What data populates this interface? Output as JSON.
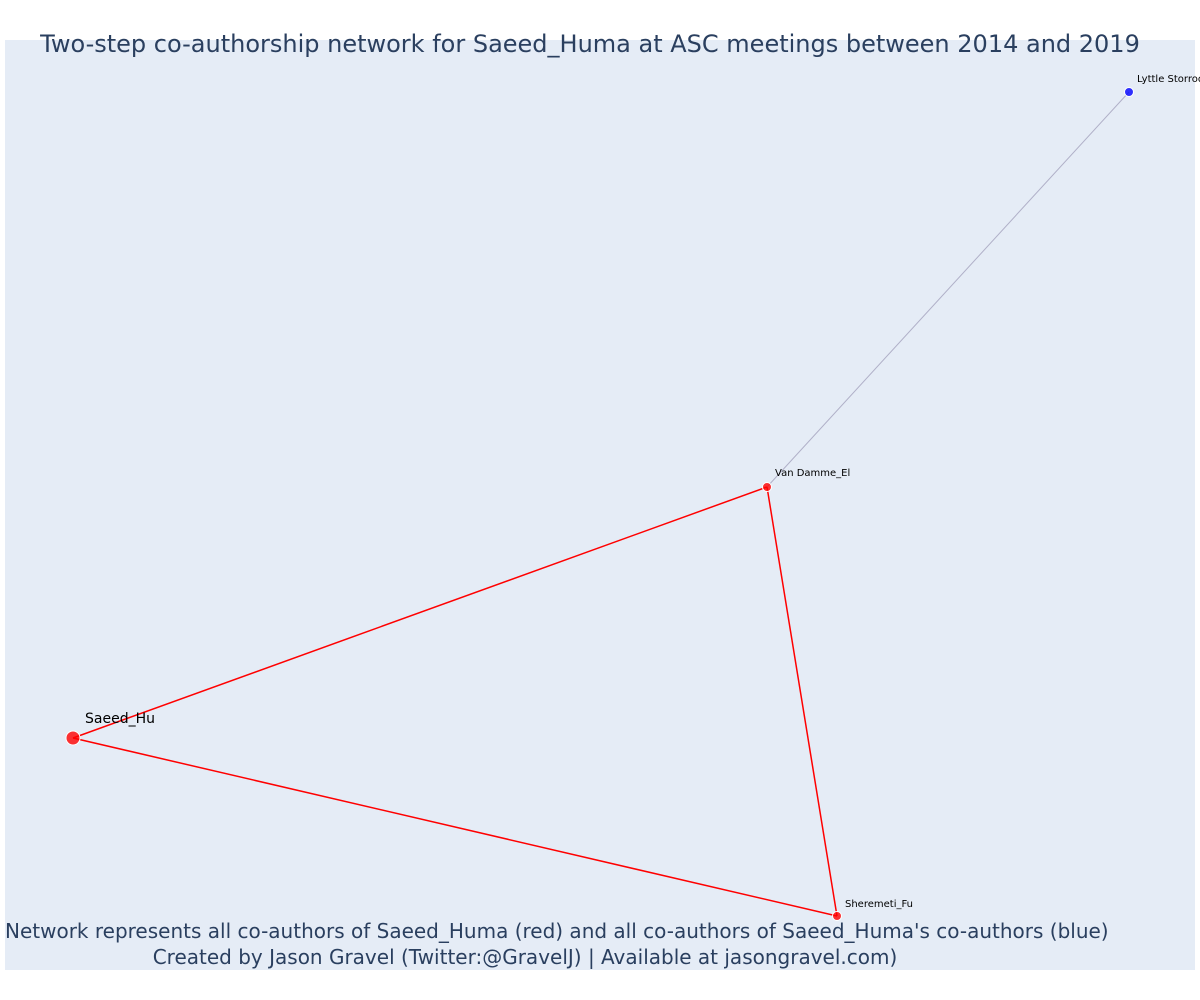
{
  "title": "Two-step co-authorship network for Saeed_Huma at ASC meetings between 2014 and 2019",
  "caption": {
    "line1": "Network represents all co-authors of Saeed_Huma (red) and all co-authors of Saeed_Huma's co-authors (blue)",
    "line2": "Created by Jason Gravel (Twitter:@GravelJ) | Available at jasongravel.com)"
  },
  "colors": {
    "background": "#e5ecf6",
    "first_step": "#ff0000",
    "second_step": "#0000ff",
    "second_step_edge": "#b0b0c8"
  },
  "nodes": [
    {
      "id": "saeed",
      "label": "Saeed_Hu",
      "group": "focal"
    },
    {
      "id": "vandamme",
      "label": "Van Damme_El",
      "group": "co-author"
    },
    {
      "id": "sheremeti",
      "label": "Sheremeti_Fu",
      "group": "co-author"
    },
    {
      "id": "lyttle",
      "label": "Lyttle Storrod",
      "group": "co-author-of-co-author"
    }
  ],
  "edges": [
    {
      "source": "saeed",
      "target": "vandamme",
      "type": "first_step"
    },
    {
      "source": "saeed",
      "target": "sheremeti",
      "type": "first_step"
    },
    {
      "source": "vandamme",
      "target": "sheremeti",
      "type": "first_step"
    },
    {
      "source": "vandamme",
      "target": "lyttle",
      "type": "second_step"
    }
  ]
}
